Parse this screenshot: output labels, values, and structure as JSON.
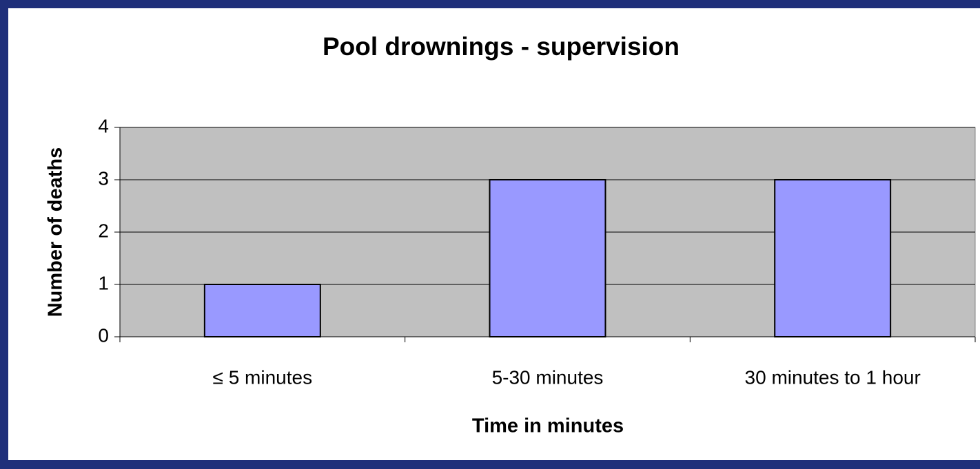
{
  "chart_data": {
    "type": "bar",
    "title": "Pool drownings - supervision",
    "x_label": "Time in minutes",
    "y_label": "Number of deaths",
    "categories": [
      "≤ 5 minutes",
      "5-30 minutes",
      "30 minutes to 1 hour"
    ],
    "values": [
      1,
      3,
      3
    ],
    "color": "#9999ff",
    "ylim": [
      0,
      4
    ],
    "yticks": [
      0,
      1,
      2,
      3,
      4
    ],
    "grid": true
  }
}
